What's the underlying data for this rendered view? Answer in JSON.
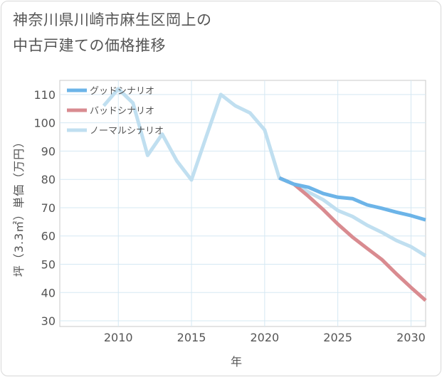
{
  "chart_data": {
    "type": "line",
    "title": [
      "神奈川県川崎市麻生区岡上の",
      "中古戸建ての価格推移"
    ],
    "xlabel": "年",
    "ylabel": "坪（3.3㎡）単価（万円）",
    "xlim": [
      2006,
      2031
    ],
    "ylim": [
      28,
      115
    ],
    "x_ticks": [
      2010,
      2015,
      2020,
      2025,
      2030
    ],
    "y_ticks": [
      30,
      40,
      50,
      60,
      70,
      80,
      90,
      100,
      110
    ],
    "grid": true,
    "legend_position": "top-left",
    "series": [
      {
        "name": "グッドシナリオ",
        "color": "#6cb4e8",
        "x": [
          2021,
          2022,
          2023,
          2024,
          2025,
          2026,
          2027,
          2028,
          2029,
          2030,
          2031
        ],
        "values": [
          80.5,
          78.3,
          77.2,
          75.0,
          73.7,
          73.2,
          71.0,
          69.8,
          68.4,
          67.2,
          65.7
        ]
      },
      {
        "name": "バッドシナリオ",
        "color": "#d98b90",
        "x": [
          2021,
          2022,
          2023,
          2024,
          2025,
          2026,
          2027,
          2028,
          2029,
          2030,
          2031
        ],
        "values": [
          80.5,
          78.3,
          74.0,
          69.3,
          64.2,
          59.6,
          55.6,
          51.7,
          46.6,
          41.8,
          37.2
        ]
      },
      {
        "name": "ノーマルシナリオ",
        "color": "#c0dff0",
        "x": [
          2009,
          2010,
          2011,
          2012,
          2013,
          2014,
          2015,
          2016,
          2017,
          2018,
          2019,
          2020,
          2021,
          2022,
          2023,
          2024,
          2025,
          2026,
          2027,
          2028,
          2029,
          2030,
          2031
        ],
        "values": [
          106,
          112,
          107,
          88.5,
          96,
          86.5,
          79.8,
          95,
          110,
          106,
          103.5,
          97.5,
          80.5,
          78.3,
          75.5,
          72.8,
          69.0,
          66.9,
          63.8,
          61.3,
          58.4,
          56.2,
          53.0
        ]
      }
    ]
  }
}
